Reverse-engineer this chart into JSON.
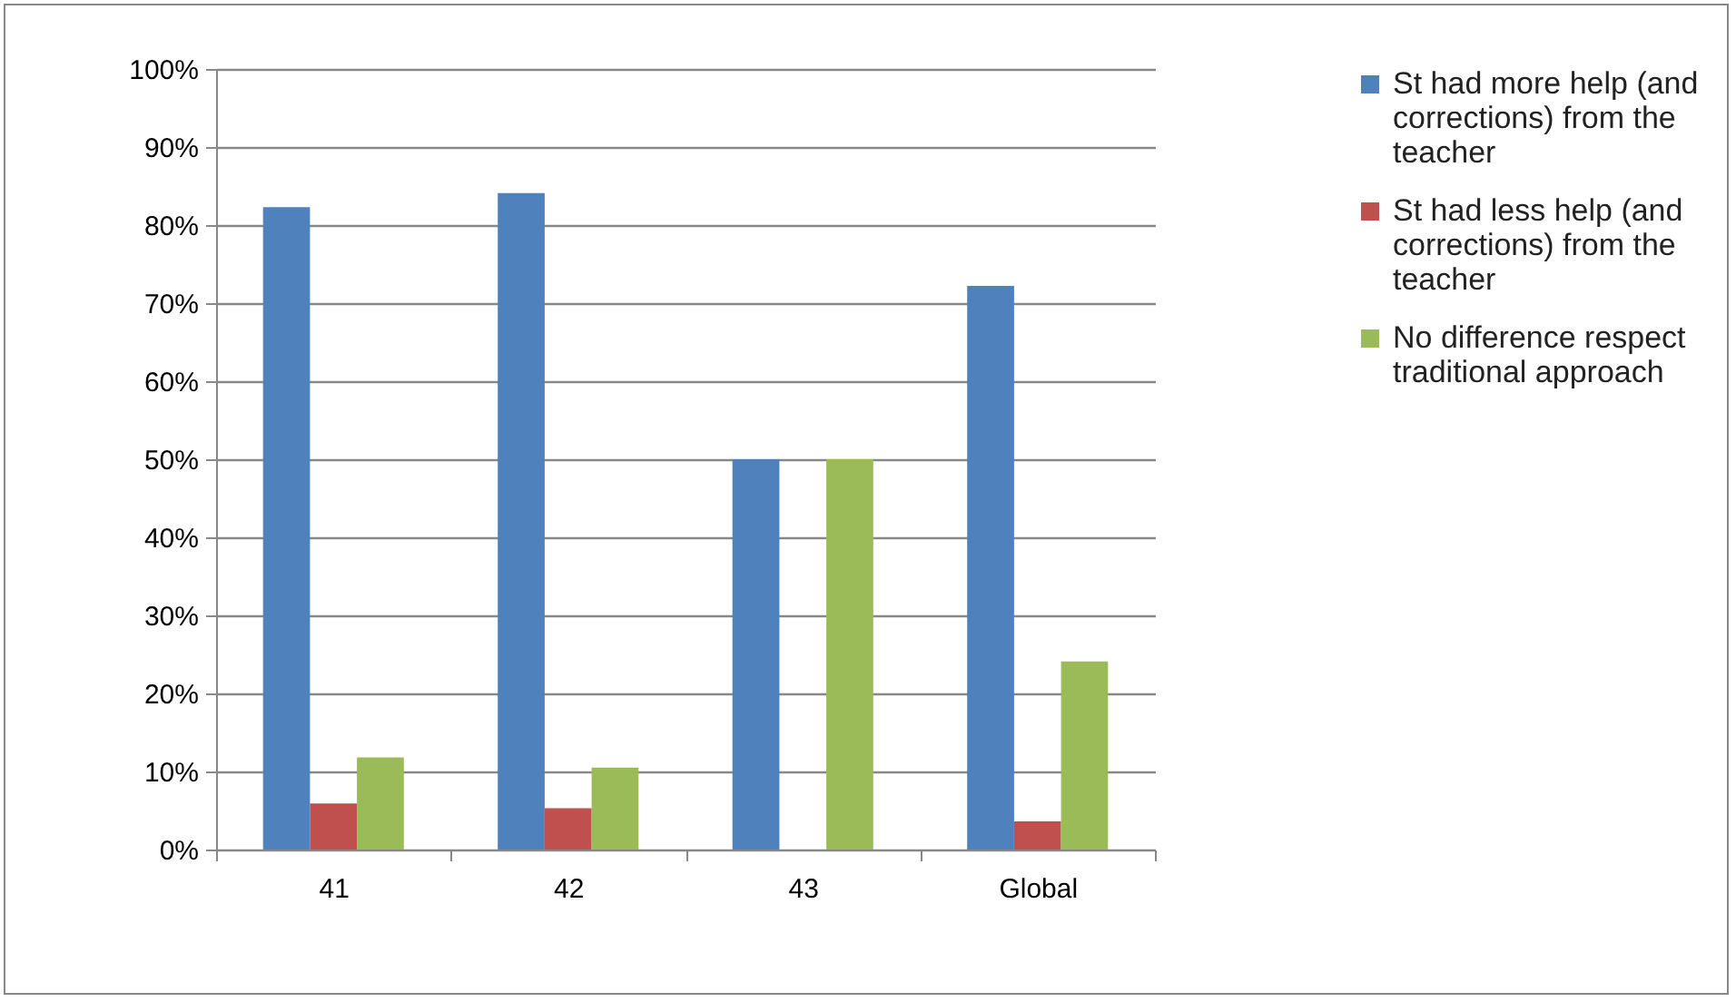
{
  "chart_data": {
    "type": "bar",
    "categories": [
      "41",
      "42",
      "43",
      "Global"
    ],
    "series": [
      {
        "name": "St had more help (and corrections) from the teacher",
        "color": "#4f81bd",
        "values": [
          82.3,
          84.1,
          50,
          72.2
        ]
      },
      {
        "name": "St had less help (and corrections) from the teacher",
        "color": "#c0504d",
        "values": [
          5.9,
          5.3,
          0,
          3.6
        ]
      },
      {
        "name": "No difference respect traditional approach",
        "color": "#9bbb59",
        "values": [
          11.8,
          10.5,
          50,
          24.1
        ]
      }
    ],
    "ylim": [
      0,
      100
    ],
    "yticks": [
      {
        "value": 0,
        "label": "0%"
      },
      {
        "value": 10,
        "label": "10%"
      },
      {
        "value": 20,
        "label": "20%"
      },
      {
        "value": 30,
        "label": "30%"
      },
      {
        "value": 40,
        "label": "40%"
      },
      {
        "value": 50,
        "label": "50%"
      },
      {
        "value": 60,
        "label": "60%"
      },
      {
        "value": 70,
        "label": "70%"
      },
      {
        "value": 80,
        "label": "80%"
      },
      {
        "value": 90,
        "label": "90%"
      },
      {
        "value": 100,
        "label": "100%"
      }
    ],
    "grid": "y",
    "legend": "right"
  }
}
